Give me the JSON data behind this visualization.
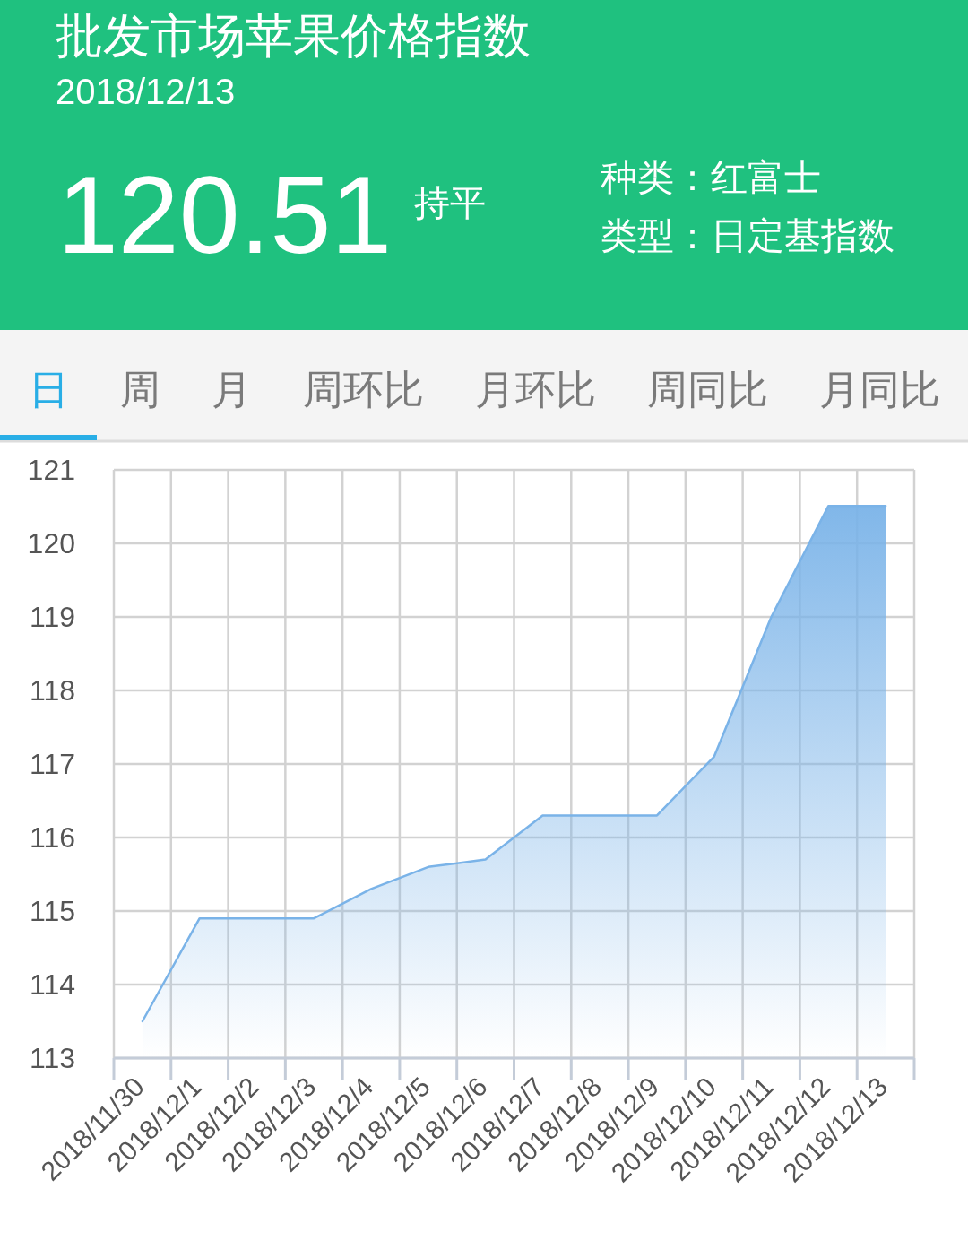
{
  "chart_data": {
    "type": "area",
    "title": "批发市场苹果价格指数",
    "subtitle": "2018/12/13",
    "annotations": [
      "120.51",
      "持平",
      "种类：红富士",
      "类型：日定基指数",
      "日",
      "周",
      "月",
      "周环比",
      "月环比",
      "周同比",
      "月同比"
    ],
    "categories": [
      "2018/11/30",
      "2018/12/1",
      "2018/12/2",
      "2018/12/3",
      "2018/12/4",
      "2018/12/5",
      "2018/12/6",
      "2018/12/7",
      "2018/12/8",
      "2018/12/9",
      "2018/12/10",
      "2018/12/11",
      "2018/12/12",
      "2018/12/13"
    ],
    "values": [
      113.5,
      114.9,
      114.9,
      114.9,
      115.3,
      115.6,
      115.7,
      116.3,
      116.3,
      116.3,
      117.1,
      119.0,
      120.51,
      120.51
    ],
    "color": "#7ab3e8",
    "ylim": [
      113,
      121
    ],
    "yticks": [
      113,
      114,
      115,
      116,
      117,
      118,
      119,
      120,
      121
    ],
    "grid": true
  }
}
